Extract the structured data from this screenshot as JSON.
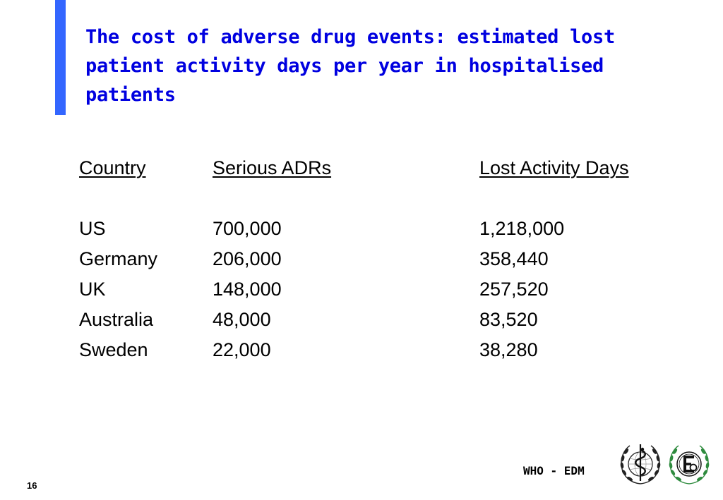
{
  "slide": {
    "title": "The cost of adverse drug events: estimated lost patient activity days per year in hospitalised patients",
    "page_number": "16",
    "footer": "WHO - EDM"
  },
  "table": {
    "headers": [
      "Country",
      "Serious ADRs",
      "Lost Activity Days"
    ],
    "rows": [
      [
        "US",
        "700,000",
        "1,218,000"
      ],
      [
        "Germany",
        "206,000",
        "358,440"
      ],
      [
        "UK",
        "148,000",
        "257,520"
      ],
      [
        "Australia",
        "48,000",
        "83,520"
      ],
      [
        "Sweden",
        "22,000",
        "38,280"
      ]
    ]
  },
  "logos": {
    "who": "who-emblem-icon",
    "edm": "edm-emblem-icon"
  },
  "colors": {
    "title": "#0000e0",
    "accent_bar": "#3366ff",
    "edm_wreath": "#2e8b3e"
  }
}
